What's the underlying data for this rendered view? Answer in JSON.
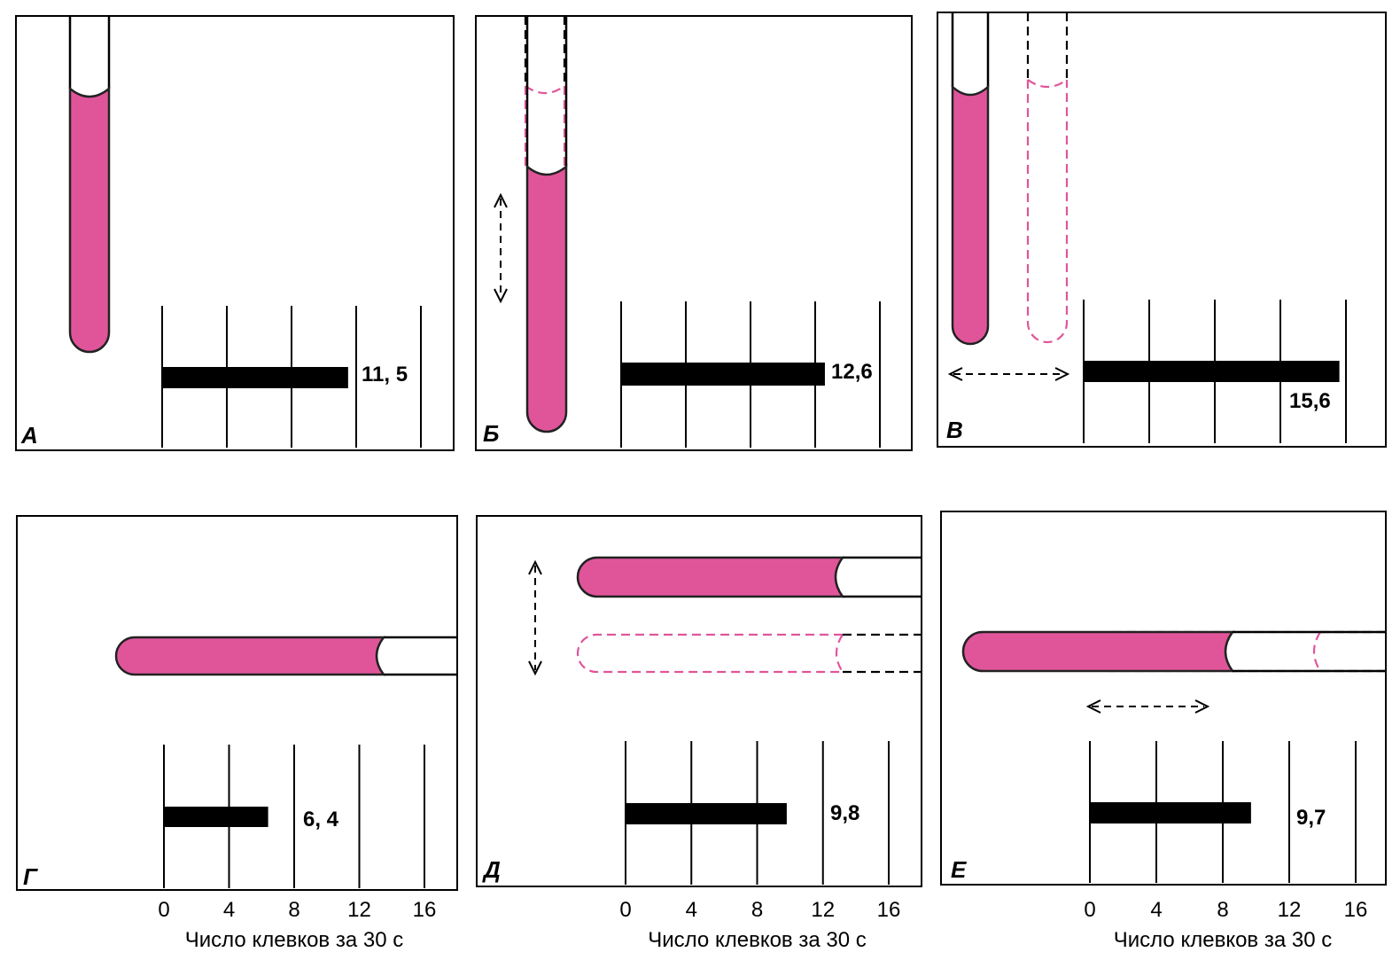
{
  "figure": {
    "tube_color": "#e0559a",
    "ghost_color": "#e0559a",
    "axis": {
      "ticks": [
        0,
        4,
        8,
        12,
        16
      ],
      "max": 16,
      "title": "Число клевков за 30 с"
    },
    "panels": [
      {
        "letter": "А",
        "value": 11.5,
        "value_label": "11, 5",
        "tube": "vertical",
        "motion": "none"
      },
      {
        "letter": "Б",
        "value": 12.6,
        "value_label": "12,6",
        "tube": "vertical",
        "motion": "vertical"
      },
      {
        "letter": "В",
        "value": 15.6,
        "value_label": "15,6",
        "tube": "vertical",
        "motion": "horizontal"
      },
      {
        "letter": "Г",
        "value": 6.4,
        "value_label": "6, 4",
        "tube": "horizontal",
        "motion": "none"
      },
      {
        "letter": "Д",
        "value": 9.8,
        "value_label": "9,8",
        "tube": "horizontal",
        "motion": "vertical"
      },
      {
        "letter": "Е",
        "value": 9.7,
        "value_label": "9,7",
        "tube": "horizontal",
        "motion": "horizontal"
      }
    ]
  },
  "chart_data": {
    "type": "bar",
    "categories": [
      "А",
      "Б",
      "В",
      "Г",
      "Д",
      "Е"
    ],
    "values": [
      11.5,
      12.6,
      15.6,
      6.4,
      9.8,
      9.7
    ],
    "xlabel": "Число клевков за 30 с",
    "xlim": [
      0,
      16
    ],
    "xticks": [
      0,
      4,
      8,
      12,
      16
    ]
  }
}
